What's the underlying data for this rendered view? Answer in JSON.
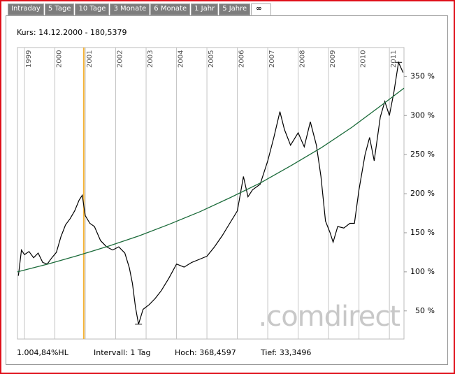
{
  "tabs": [
    "Intraday",
    "5 Tage",
    "10 Tage",
    "3 Monate",
    "6 Monate",
    "1 Jahr",
    "5 Jahre",
    "∞"
  ],
  "info": "Kurs: 14.12.2000 - 180,5379",
  "footer": [
    "1.004,84%HL",
    "Intervall: 1 Tag",
    "Hoch: 368,4597",
    "Tief: 33,3496"
  ],
  "watermark": ".comdirect",
  "chart_data": {
    "type": "line",
    "xlim": [
      1998.77,
      2011.48
    ],
    "xticks": [
      1999,
      2000,
      2001,
      2002,
      2003,
      2004,
      2005,
      2006,
      2007,
      2008,
      2009,
      2010,
      2011
    ],
    "ylim": [
      14,
      387
    ],
    "yticks": [
      {
        "value": 50,
        "label": "50 %"
      },
      {
        "value": 100,
        "label": "100 %"
      },
      {
        "value": 150,
        "label": "150 %"
      },
      {
        "value": 200,
        "label": "200 %"
      },
      {
        "value": 250,
        "label": "250 %"
      },
      {
        "value": 300,
        "label": "300 %"
      },
      {
        "value": 350,
        "label": "350 %"
      }
    ],
    "grid": true,
    "highlight_x": 2000.95,
    "highlight_color": "#f5b335",
    "series": [
      {
        "color": "#000000",
        "x": [
          1998.8,
          1998.9,
          1999.0,
          1999.15,
          1999.3,
          1999.45,
          1999.6,
          1999.75,
          1999.9,
          2000.05,
          2000.2,
          2000.35,
          2000.5,
          2000.65,
          2000.8,
          2000.9,
          2001.0,
          2001.15,
          2001.3,
          2001.5,
          2001.7,
          2001.9,
          2002.1,
          2002.3,
          2002.45,
          2002.55,
          2002.65,
          2002.75,
          2002.9,
          2003.1,
          2003.3,
          2003.5,
          2003.75,
          2004.0,
          2004.25,
          2004.5,
          2004.75,
          2005.0,
          2005.25,
          2005.5,
          2005.75,
          2006.0,
          2006.2,
          2006.35,
          2006.5,
          2006.75,
          2007.0,
          2007.2,
          2007.4,
          2007.55,
          2007.75,
          2008.0,
          2008.2,
          2008.4,
          2008.6,
          2008.75,
          2008.9,
          2009.05,
          2009.15,
          2009.3,
          2009.5,
          2009.7,
          2009.85,
          2010.0,
          2010.2,
          2010.35,
          2010.5,
          2010.7,
          2010.85,
          2011.0,
          2011.15,
          2011.3,
          2011.45
        ],
        "values": [
          95,
          128,
          122,
          126,
          118,
          124,
          112,
          110,
          118,
          125,
          145,
          160,
          168,
          178,
          192,
          198,
          172,
          162,
          158,
          140,
          132,
          128,
          132,
          124,
          105,
          85,
          55,
          33,
          52,
          58,
          66,
          76,
          92,
          110,
          106,
          112,
          116,
          120,
          132,
          146,
          162,
          178,
          222,
          196,
          205,
          212,
          242,
          272,
          305,
          282,
          262,
          278,
          260,
          292,
          262,
          222,
          165,
          150,
          138,
          158,
          156,
          162,
          162,
          205,
          250,
          272,
          242,
          298,
          318,
          300,
          330,
          368,
          355
        ]
      },
      {
        "color": "#1b6b3a",
        "x": [
          1998.77,
          1999.77,
          2000.77,
          2001.77,
          2002.77,
          2003.77,
          2004.77,
          2005.77,
          2006.77,
          2007.77,
          2008.77,
          2009.77,
          2010.77,
          2011.48
        ],
        "values": [
          100,
          110,
          121,
          133,
          146,
          161,
          177,
          195,
          214,
          236,
          259,
          285,
          314,
          335
        ]
      }
    ]
  }
}
